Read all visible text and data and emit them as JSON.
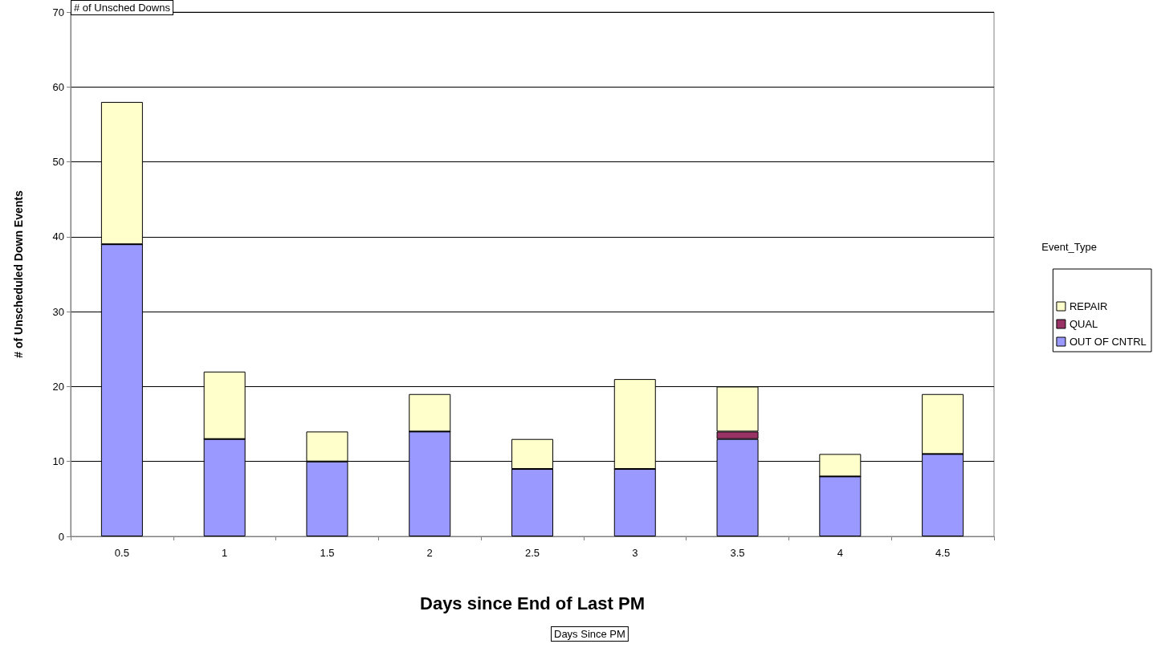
{
  "chart_data": {
    "type": "bar",
    "stacked": true,
    "xlabel": "Days since End of Last PM",
    "ylabel": "# of Unscheduled Down Events",
    "legend_title": "Event_Type",
    "annotations": [
      "# of Unsched Downs",
      "Days Since PM"
    ],
    "categories": [
      "0.5",
      "1",
      "1.5",
      "2",
      "2.5",
      "3",
      "3.5",
      "4",
      "4.5"
    ],
    "series": [
      {
        "name": "OUT OF CNTRL",
        "color": "#9999ff",
        "values": [
          39,
          13,
          10,
          14,
          9,
          9,
          13,
          8,
          11
        ]
      },
      {
        "name": "QUAL",
        "color": "#993366",
        "values": [
          0,
          0,
          0,
          0,
          0,
          0,
          1,
          0,
          0
        ]
      },
      {
        "name": "REPAIR",
        "color": "#ffffcc",
        "values": [
          19,
          9,
          4,
          5,
          4,
          12,
          6,
          3,
          8
        ]
      }
    ],
    "ylim": [
      0,
      70
    ],
    "yticks": [
      0,
      10,
      20,
      30,
      40,
      50,
      60,
      70
    ],
    "grid": "y",
    "legend": "right"
  }
}
